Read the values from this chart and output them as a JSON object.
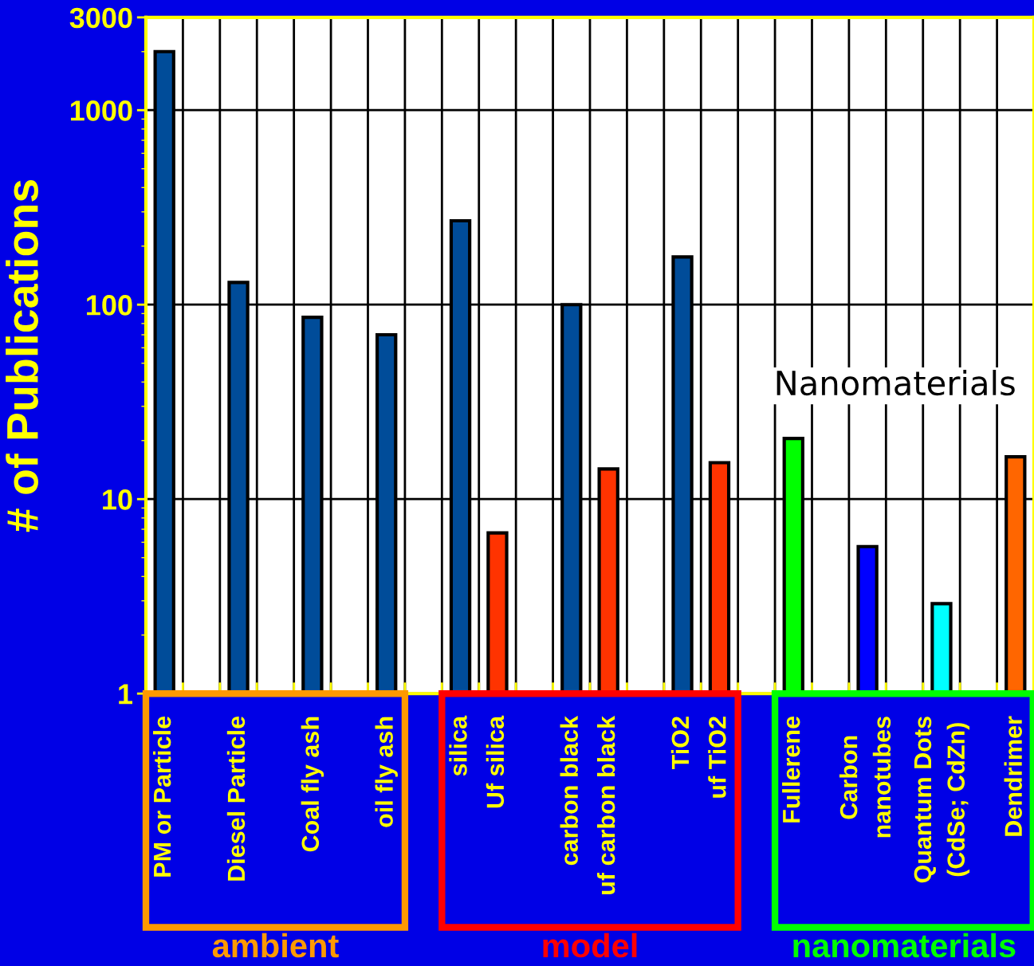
{
  "chart_data": {
    "type": "bar",
    "ylabel": "# of Publications",
    "categories": [
      "PM or Particle",
      null,
      "Diesel Particle",
      null,
      "Coal fly ash",
      null,
      "oil fly ash",
      null,
      "silica",
      "Uf silica",
      null,
      "carbon black",
      "uf carbon black",
      null,
      "TiO2",
      "uf TiO2",
      null,
      "Fullerene",
      null,
      "Carbon\nnanotubes",
      null,
      "Quantum Dots\n(CdSe; CdZn)",
      null,
      "Dendrimer"
    ],
    "values": [
      2000,
      null,
      130,
      null,
      86,
      null,
      70,
      null,
      270,
      6.7,
      null,
      100,
      14.3,
      null,
      176,
      15.4,
      null,
      20.5,
      null,
      5.7,
      null,
      2.9,
      null,
      16.5
    ],
    "colors": [
      "#004c99",
      null,
      "#004c99",
      null,
      "#004c99",
      null,
      "#004c99",
      null,
      "#004c99",
      "#ff3300",
      null,
      "#004c99",
      "#ff3300",
      null,
      "#004c99",
      "#ff3300",
      null,
      "#00ff00",
      null,
      "#0000ff",
      null,
      "#00ffff",
      null,
      "#ff6600"
    ],
    "log": "y",
    "ylim": [
      1,
      3000
    ],
    "yticks": [
      1,
      10,
      100,
      1000,
      3000
    ],
    "grid": true,
    "annotations": [
      "Nanomaterials",
      "ambient",
      "model",
      "nanomaterials"
    ]
  }
}
